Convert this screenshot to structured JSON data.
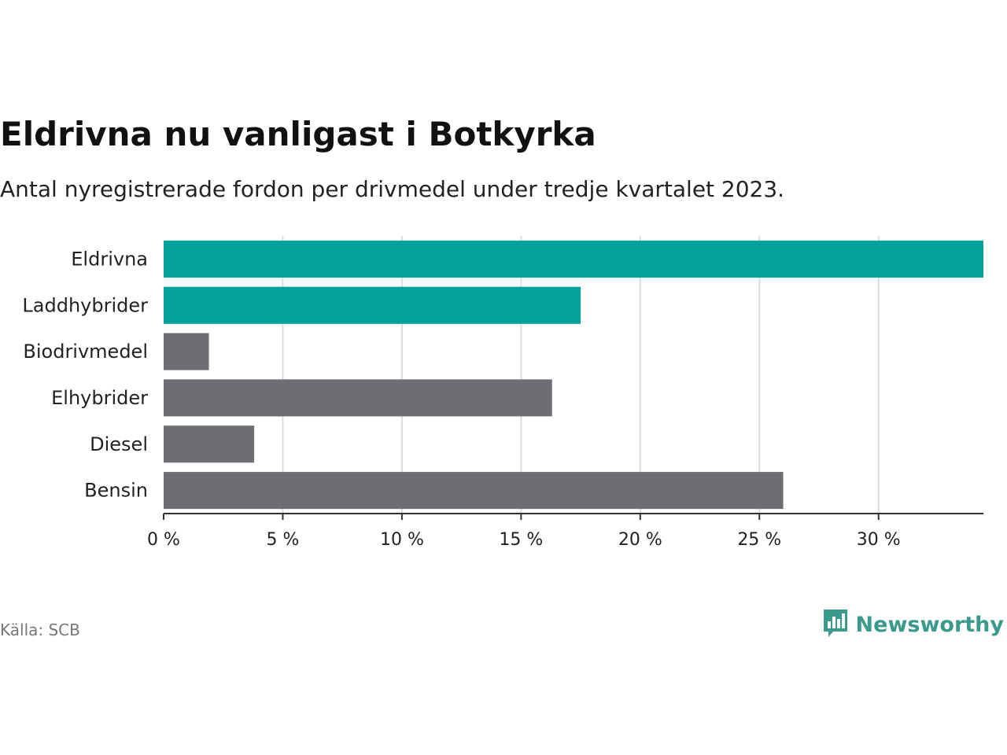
{
  "header": {
    "title": "Eldrivna nu vanligast i Botkyrka",
    "subtitle": "Antal nyregistrerade fordon per drivmedel under tredje kvartalet 2023."
  },
  "footer": {
    "source": "Källa: SCB",
    "brand": "Newsworthy"
  },
  "colors": {
    "highlight": "#00a29a",
    "other": "#6e6d73",
    "grid": "#dddddd",
    "axis": "#333333",
    "brand": "#3a9a8c"
  },
  "chart_data": {
    "type": "bar",
    "orientation": "horizontal",
    "title": "Eldrivna nu vanligast i Botkyrka",
    "subtitle": "Antal nyregistrerade fordon per drivmedel under tredje kvartalet 2023.",
    "xlabel": "",
    "ylabel": "",
    "categories": [
      "Eldrivna",
      "Laddhybrider",
      "Biodrivmedel",
      "Elhybrider",
      "Diesel",
      "Bensin"
    ],
    "values": [
      34.4,
      17.5,
      1.9,
      16.3,
      3.8,
      26.0
    ],
    "highlighted": [
      true,
      true,
      false,
      false,
      false,
      false
    ],
    "xlim": [
      0,
      34.4
    ],
    "xticks": [
      0,
      5,
      10,
      15,
      20,
      25,
      30
    ],
    "xtick_labels": [
      "0 %",
      "5 %",
      "10 %",
      "15 %",
      "20 %",
      "25 %",
      "30 %"
    ],
    "grid": true
  }
}
